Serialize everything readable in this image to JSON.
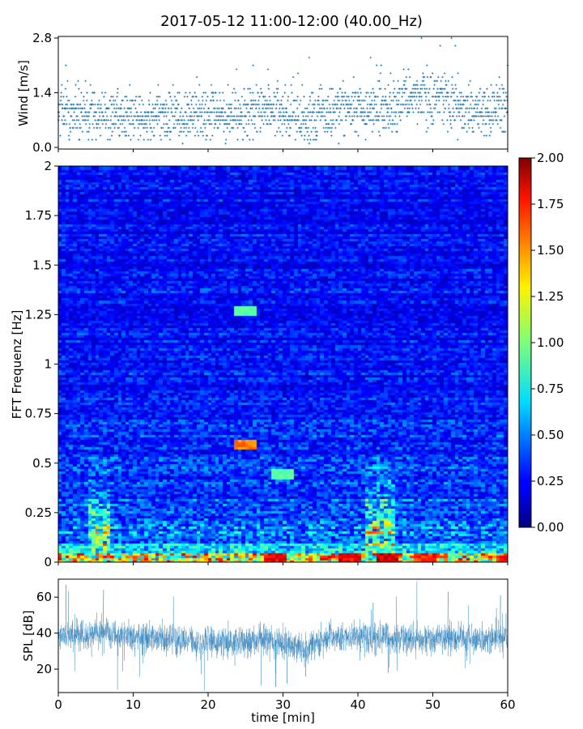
{
  "figure": {
    "title": "2017-05-12 11:00-12:00 (40.00_Hz)"
  },
  "chart_data": [
    {
      "type": "scatter",
      "panel": "wind",
      "title": "",
      "xlabel": "",
      "ylabel": "Wind [m/s]",
      "xlim": [
        0,
        60
      ],
      "ylim": [
        0,
        2.8
      ],
      "yticks": [
        "0.0",
        "1.4",
        "2.8"
      ],
      "ytick_values": [
        0,
        1.4,
        2.8
      ],
      "xticks": [
        0,
        10,
        20,
        30,
        40,
        50,
        60
      ],
      "grid": false,
      "marker_color": "#1f77b4",
      "y_quantization": 0.1,
      "sample_interval_s": 1,
      "wind_profile_minutes": [
        0,
        3,
        6,
        9,
        12,
        15,
        18,
        21,
        24,
        27,
        30,
        33,
        36,
        39,
        42,
        45,
        48,
        51,
        54,
        57,
        60
      ],
      "wind_profile_mean": [
        0.9,
        0.9,
        0.8,
        0.8,
        0.7,
        0.8,
        0.8,
        0.8,
        0.9,
        1.0,
        0.9,
        0.8,
        0.9,
        1.0,
        1.1,
        1.0,
        1.3,
        1.2,
        1.0,
        0.9,
        1.1
      ],
      "wind_peaks": [
        [
          1.0,
          2.1
        ],
        [
          26.0,
          2.1
        ],
        [
          28.0,
          2.0
        ],
        [
          33.5,
          2.3
        ],
        [
          41.7,
          2.3
        ],
        [
          42.5,
          2.1
        ],
        [
          48.5,
          2.8
        ],
        [
          51.0,
          2.6
        ],
        [
          52.5,
          2.8
        ],
        [
          53.0,
          2.6
        ],
        [
          60.0,
          2.1
        ]
      ]
    },
    {
      "type": "heatmap",
      "panel": "spectrogram",
      "title": "",
      "xlabel": "",
      "ylabel": "FFT Frequenz [Hz]",
      "xlim": [
        0,
        60
      ],
      "ylim": [
        0,
        2
      ],
      "yticks": [
        "0",
        "0.25",
        "0.5",
        "0.75",
        "1",
        "1.25",
        "1.5",
        "1.75",
        "2"
      ],
      "ytick_values": [
        0,
        0.25,
        0.5,
        0.75,
        1,
        1.25,
        1.5,
        1.75,
        2
      ],
      "colormap": "jet",
      "color_range": [
        0,
        2
      ],
      "colorbar_ticks": [
        "0.00",
        "0.25",
        "0.50",
        "0.75",
        "1.00",
        "1.25",
        "1.50",
        "1.75",
        "2.00"
      ],
      "colorbar_values": [
        0,
        0.25,
        0.5,
        0.75,
        1.0,
        1.25,
        1.5,
        1.75,
        2.0
      ],
      "time_bins": 120,
      "freq_bins": 160,
      "background_level": 0.3,
      "high_frequency_level": 0.25,
      "low_frequency_level": 0.55,
      "lowest_band_level": 1.4,
      "energetic_periods_minutes": [
        [
          4,
          7
        ],
        [
          41,
          45
        ]
      ],
      "energetic_level_max": 1.0,
      "hot_spots": [
        [
          44.0,
          0.03,
          2.0
        ],
        [
          29.0,
          0.03,
          1.9
        ],
        [
          39.0,
          0.02,
          1.9
        ],
        [
          49.0,
          0.02,
          1.8
        ],
        [
          60.0,
          0.01,
          1.8
        ],
        [
          25.0,
          0.6,
          1.6
        ],
        [
          30.0,
          0.45,
          1.0
        ],
        [
          25.0,
          1.27,
          1.0
        ]
      ]
    },
    {
      "type": "line",
      "panel": "spl",
      "title": "",
      "xlabel": "time [min]",
      "ylabel": "SPL [dB]",
      "xlim": [
        0,
        60
      ],
      "ylim": [
        7,
        70
      ],
      "yticks": [
        "20",
        "40",
        "60"
      ],
      "ytick_values": [
        20,
        40,
        60
      ],
      "xticks": [
        "0",
        "10",
        "20",
        "30",
        "40",
        "50",
        "60"
      ],
      "xtick_values": [
        0,
        10,
        20,
        30,
        40,
        50,
        60
      ],
      "line_color": "#1f77b4",
      "spl_profile_minutes": [
        0,
        3,
        6,
        9,
        12,
        15,
        18,
        21,
        24,
        27,
        30,
        33,
        36,
        39,
        42,
        45,
        48,
        51,
        54,
        57,
        60
      ],
      "spl_profile_mean": [
        39,
        39,
        40,
        38,
        37,
        36,
        35,
        35,
        35,
        36,
        34,
        32,
        37,
        38,
        38,
        37,
        37,
        37,
        37,
        36,
        38
      ],
      "spl_spread_db": 4,
      "spl_spikes": [
        [
          1.0,
          67
        ],
        [
          6.0,
          64
        ],
        [
          42.0,
          57
        ],
        [
          52.0,
          63
        ],
        [
          59.0,
          61
        ],
        [
          29.0,
          10
        ],
        [
          30.5,
          12
        ],
        [
          33.0,
          16
        ],
        [
          44.0,
          18
        ]
      ]
    }
  ]
}
